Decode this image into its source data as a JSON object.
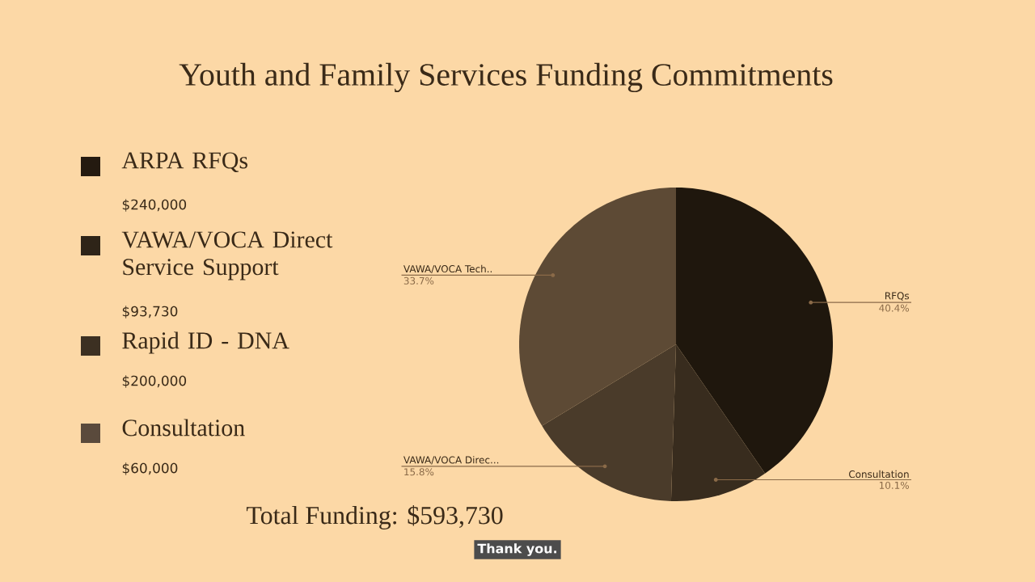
{
  "chart_data": [
    {
      "type": "pie",
      "title": "Youth and Family Services Funding Commitments",
      "categories": [
        "RFQs",
        "Consultation",
        "VAWA/VOCA Direc...",
        "VAWA/VOCA Tech.."
      ],
      "values": [
        40.4,
        10.1,
        15.8,
        33.7
      ],
      "value_labels": [
        "40.4%",
        "10.1%",
        "15.8%",
        "33.7%"
      ],
      "colors": [
        "#1f170d",
        "#382c1e",
        "#4a3b2a",
        "#5d4a35"
      ]
    },
    {
      "type": "other",
      "categories": [
        "ARPA RFQs",
        "VAWA/VOCA Direct Service Support",
        "Rapid ID - DNA",
        "Consultation"
      ],
      "colors": [
        "#241a10",
        "#2e2418",
        "#3c3022",
        "#5a4a3c"
      ],
      "annotations": [
        "$240,000",
        "$93,730",
        "$200,000",
        "$60,000",
        "Total Funding: $593,730",
        "Thank you."
      ]
    }
  ]
}
